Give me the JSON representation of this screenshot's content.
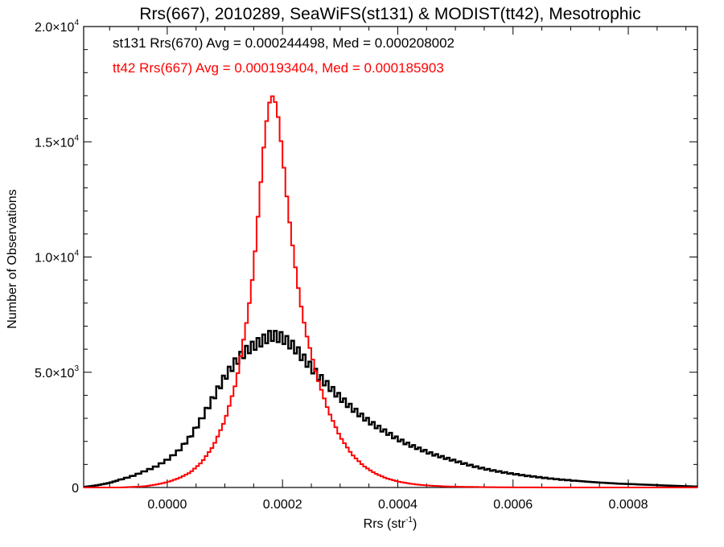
{
  "chart_data": {
    "type": "line",
    "title": "Rrs(667), 2010289, SeaWiFS(st131) & MODIST(tt42), Mesotrophic",
    "xlabel_main": "Rrs (str",
    "xlabel_sup": "-1",
    "xlabel_end": ")",
    "ylabel": "Number of Observations",
    "xlim": [
      -0.000145,
      0.00092
    ],
    "ylim": [
      0,
      20000
    ],
    "xticks": [
      {
        "value": 0.0,
        "label": "0.0000"
      },
      {
        "value": 0.0002,
        "label": "0.0002"
      },
      {
        "value": 0.0004,
        "label": "0.0004"
      },
      {
        "value": 0.0006,
        "label": "0.0006"
      },
      {
        "value": 0.0008,
        "label": "0.0008"
      }
    ],
    "yticks": [
      {
        "value": 0,
        "mant": "0",
        "exp": ""
      },
      {
        "value": 5000,
        "mant": "5.0×10",
        "exp": "3"
      },
      {
        "value": 10000,
        "mant": "1.0×10",
        "exp": "4"
      },
      {
        "value": 15000,
        "mant": "1.5×10",
        "exp": "4"
      },
      {
        "value": 20000,
        "mant": "2.0×10",
        "exp": "4"
      }
    ],
    "grid": false,
    "legend": [
      {
        "text": "st131 Rrs(670) Avg = 0.000244498, Med = 0.000208002",
        "color": "#000000"
      },
      {
        "text": "tt42 Rrs(667) Avg = 0.000193404, Med = 0.000185903",
        "color": "#ff0000"
      }
    ],
    "series": [
      {
        "name": "st131 Rrs(670)",
        "color": "#000000",
        "stroke": 2.5,
        "points": [
          [
            -0.00015,
            0
          ],
          [
            -0.00012,
            100
          ],
          [
            -0.0001,
            200
          ],
          [
            -8e-05,
            350
          ],
          [
            -6e-05,
            500
          ],
          [
            -4e-05,
            700
          ],
          [
            -2e-05,
            900
          ],
          [
            0.0,
            1200
          ],
          [
            2e-05,
            1600
          ],
          [
            4e-05,
            2200
          ],
          [
            6e-05,
            3000
          ],
          [
            8e-05,
            3900
          ],
          [
            0.0001,
            4800
          ],
          [
            0.00012,
            5500
          ],
          [
            0.00014,
            6000
          ],
          [
            0.00016,
            6300
          ],
          [
            0.00018,
            6600
          ],
          [
            0.0002,
            6500
          ],
          [
            0.00022,
            6100
          ],
          [
            0.00024,
            5500
          ],
          [
            0.00026,
            4900
          ],
          [
            0.00028,
            4400
          ],
          [
            0.0003,
            3900
          ],
          [
            0.00032,
            3450
          ],
          [
            0.00034,
            3050
          ],
          [
            0.00036,
            2700
          ],
          [
            0.00038,
            2400
          ],
          [
            0.0004,
            2100
          ],
          [
            0.00042,
            1850
          ],
          [
            0.00044,
            1650
          ],
          [
            0.00046,
            1450
          ],
          [
            0.00048,
            1300
          ],
          [
            0.0005,
            1150
          ],
          [
            0.00052,
            1000
          ],
          [
            0.00054,
            870
          ],
          [
            0.00056,
            760
          ],
          [
            0.00058,
            670
          ],
          [
            0.0006,
            590
          ],
          [
            0.00062,
            520
          ],
          [
            0.00064,
            460
          ],
          [
            0.00066,
            400
          ],
          [
            0.00068,
            350
          ],
          [
            0.0007,
            310
          ],
          [
            0.00072,
            270
          ],
          [
            0.00074,
            230
          ],
          [
            0.00076,
            200
          ],
          [
            0.00078,
            170
          ],
          [
            0.0008,
            150
          ],
          [
            0.00082,
            130
          ],
          [
            0.00084,
            110
          ],
          [
            0.00086,
            90
          ],
          [
            0.00088,
            70
          ],
          [
            0.0009,
            55
          ],
          [
            0.00092,
            40
          ]
        ]
      },
      {
        "name": "tt42 Rrs(667)",
        "color": "#ff0000",
        "stroke": 2,
        "points": [
          [
            -0.00015,
            0
          ],
          [
            -8e-05,
            0
          ],
          [
            -4e-05,
            50
          ],
          [
            -2e-05,
            120
          ],
          [
            0.0,
            230
          ],
          [
            2e-05,
            400
          ],
          [
            4e-05,
            650
          ],
          [
            6e-05,
            1100
          ],
          [
            8e-05,
            1800
          ],
          [
            0.0001,
            2900
          ],
          [
            0.00012,
            4600
          ],
          [
            0.00014,
            7500
          ],
          [
            0.00015,
            9500
          ],
          [
            0.00016,
            12500
          ],
          [
            0.00017,
            15500
          ],
          [
            0.00018,
            17100
          ],
          [
            0.00019,
            16600
          ],
          [
            0.0002,
            14500
          ],
          [
            0.00021,
            12000
          ],
          [
            0.00022,
            10000
          ],
          [
            0.00023,
            8200
          ],
          [
            0.00024,
            6800
          ],
          [
            0.00026,
            4800
          ],
          [
            0.00028,
            3300
          ],
          [
            0.0003,
            2200
          ],
          [
            0.00032,
            1450
          ],
          [
            0.00034,
            950
          ],
          [
            0.00036,
            620
          ],
          [
            0.00038,
            400
          ],
          [
            0.0004,
            260
          ],
          [
            0.00042,
            170
          ],
          [
            0.00044,
            110
          ],
          [
            0.00046,
            75
          ],
          [
            0.00048,
            50
          ],
          [
            0.0005,
            35
          ],
          [
            0.00055,
            15
          ],
          [
            0.0006,
            5
          ],
          [
            0.00065,
            2
          ],
          [
            0.00092,
            0
          ]
        ]
      }
    ]
  }
}
